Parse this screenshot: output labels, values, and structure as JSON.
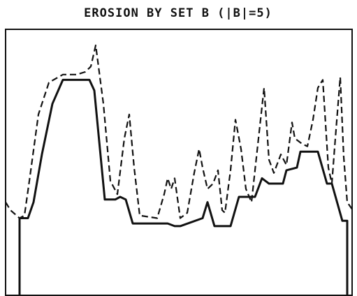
{
  "chart_data": {
    "type": "line",
    "title": "EROSION BY SET B (|B|=5)",
    "xlim": [
      0,
      497
    ],
    "ylim": [
      0,
      100
    ],
    "series": [
      {
        "color": "#111111",
        "line_style": "dashed",
        "x": [
          0,
          7,
          20,
          27,
          34,
          47,
          62,
          82,
          102,
          114,
          122,
          129,
          140,
          150,
          160,
          170,
          177,
          184,
          192,
          217,
          227,
          232,
          237,
          242,
          250,
          260,
          270,
          277,
          282,
          289,
          297,
          304,
          310,
          314,
          322,
          329,
          337,
          344,
          352,
          362,
          370,
          377,
          384,
          394,
          402,
          410,
          414,
          424,
          432,
          440,
          447,
          454,
          462,
          467,
          472,
          479,
          484,
          489,
          497
        ],
        "values": [
          35,
          32,
          29,
          30,
          43,
          68,
          80,
          83,
          83,
          84,
          86,
          94,
          72,
          43,
          38,
          59,
          68,
          48,
          30,
          29,
          38,
          44,
          40,
          44,
          29,
          31,
          46,
          55,
          48,
          40,
          42,
          47,
          32,
          31,
          47,
          66,
          55,
          40,
          35,
          59,
          78,
          51,
          46,
          53,
          49,
          65,
          59,
          57,
          56,
          66,
          78,
          81,
          48,
          42,
          59,
          82,
          52,
          35,
          32
        ]
      },
      {
        "color": "#111111",
        "line_style": "solid",
        "x": [
          20,
          20,
          32,
          40,
          52,
          67,
          82,
          120,
          127,
          142,
          157,
          164,
          172,
          182,
          232,
          242,
          250,
          282,
          289,
          299,
          322,
          334,
          357,
          367,
          377,
          397,
          402,
          417,
          422,
          447,
          460,
          467,
          482,
          489,
          489
        ],
        "values": [
          0,
          29,
          29,
          35,
          53,
          72,
          81,
          81,
          77,
          36,
          36,
          37,
          36,
          27,
          27,
          26,
          26,
          29,
          35,
          26,
          26,
          37,
          37,
          44,
          42,
          42,
          47,
          48,
          54,
          54,
          42,
          42,
          28,
          28,
          0
        ]
      }
    ]
  }
}
